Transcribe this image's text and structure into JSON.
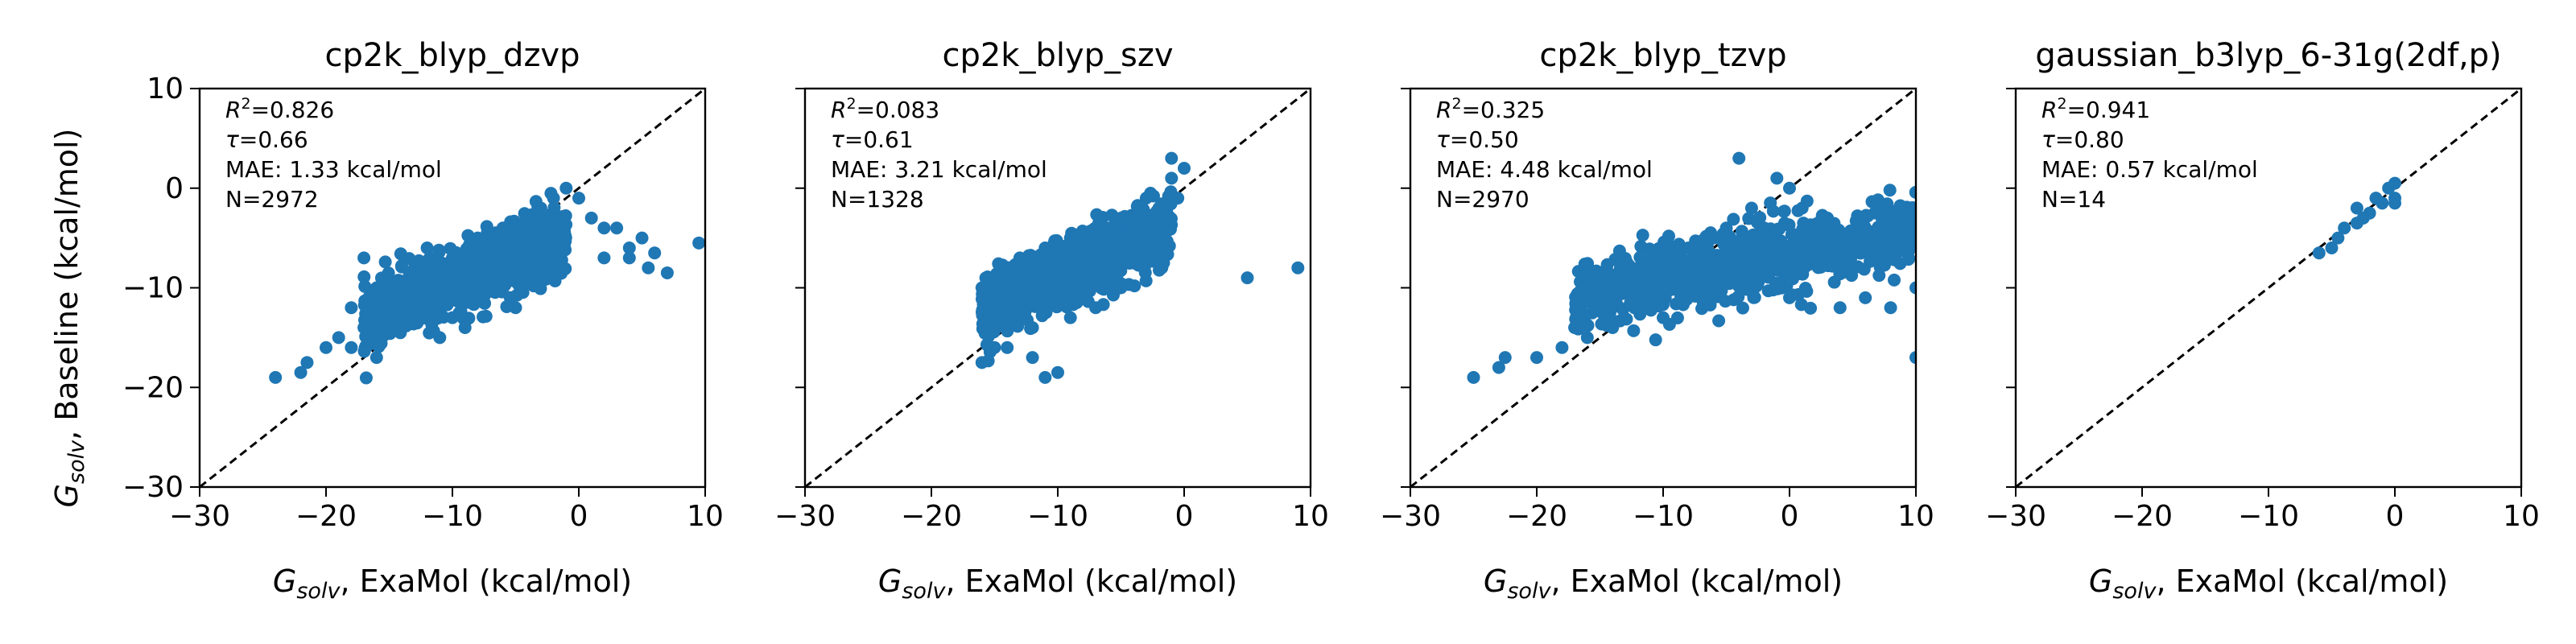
{
  "figure": {
    "ylabel_var": "G",
    "ylabel_sub": "solv",
    "ylabel_rest": ", Baseline (kcal/mol)",
    "xlabel_var": "G",
    "xlabel_sub": "solv",
    "xlabel_rest": ", ExaMol (kcal/mol)",
    "marker_color": "#1f77b4"
  },
  "chart_data": [
    {
      "type": "scatter",
      "title": "cp2k_blyp_dzvp",
      "xlim": [
        -30,
        10
      ],
      "ylim": [
        -30,
        10
      ],
      "xticks": [
        "−30",
        "−20",
        "−10",
        "0",
        "10"
      ],
      "yticks": [
        "−30",
        "−20",
        "−10",
        "0",
        "10"
      ],
      "xtick_values": [
        -30,
        -20,
        -10,
        0,
        10
      ],
      "ytick_values": [
        -30,
        -20,
        -10,
        0,
        10
      ],
      "stats": {
        "r2": "=0.826",
        "tau": "=0.66",
        "mae": "MAE: 1.33 kcal/mol",
        "n": "N=2972"
      },
      "identity_line": true,
      "cluster": {
        "x_range": [
          -17,
          -1
        ],
        "y_center": -9,
        "spread": 3.0
      },
      "points": [
        [
          -24,
          -19
        ],
        [
          -22,
          -18.5
        ],
        [
          -21.5,
          -17.5
        ],
        [
          -19,
          -15
        ],
        [
          -18,
          -16
        ],
        [
          -17,
          -14
        ],
        [
          -16,
          -17
        ],
        [
          -16,
          -13.5
        ],
        [
          -15,
          -12
        ],
        [
          -14,
          -13
        ],
        [
          -17,
          -7
        ],
        [
          -16,
          -10
        ],
        [
          -14,
          -11
        ],
        [
          -13,
          -8
        ],
        [
          -12,
          -10
        ],
        [
          -12,
          -6
        ],
        [
          -11,
          -9
        ],
        [
          -10,
          -7
        ],
        [
          -9,
          -8
        ],
        [
          -8,
          -5
        ],
        [
          -7,
          -6
        ],
        [
          -6,
          -4
        ],
        [
          -5,
          -7
        ],
        [
          -4,
          -3
        ],
        [
          -3,
          -2
        ],
        [
          -2,
          -1
        ],
        [
          -1,
          0
        ],
        [
          0,
          -1
        ],
        [
          1,
          -3
        ],
        [
          2,
          -4
        ],
        [
          2,
          -7
        ],
        [
          3,
          -4
        ],
        [
          4,
          -6
        ],
        [
          4,
          -7
        ],
        [
          5,
          -5
        ],
        [
          5.5,
          -8
        ],
        [
          6,
          -6.5
        ],
        [
          7,
          -8.5
        ],
        [
          9.5,
          -5.5
        ],
        [
          -13,
          -12
        ],
        [
          -11,
          -15
        ],
        [
          -10,
          -13
        ],
        [
          -8,
          -11
        ],
        [
          -6,
          -10
        ],
        [
          -4,
          -8
        ],
        [
          -3,
          -9
        ],
        [
          -5,
          -12
        ],
        [
          -9,
          -14
        ],
        [
          -18,
          -12
        ],
        [
          -20,
          -16
        ]
      ]
    },
    {
      "type": "scatter",
      "title": "cp2k_blyp_szv",
      "xlim": [
        -30,
        10
      ],
      "ylim": [
        -30,
        10
      ],
      "xticks": [
        "−30",
        "−20",
        "−10",
        "0",
        "10"
      ],
      "yticks": [],
      "xtick_values": [
        -30,
        -20,
        -10,
        0,
        10
      ],
      "ytick_values": [
        -30,
        -20,
        -10,
        0,
        10
      ],
      "stats": {
        "r2": "=0.083",
        "tau": "=0.61",
        "mae": "MAE: 3.21 kcal/mol",
        "n": "N=1328"
      },
      "identity_line": true,
      "cluster": {
        "x_range": [
          -16,
          -1
        ],
        "y_center": -8,
        "spread": 3.0
      },
      "points": [
        [
          -16,
          -17.5
        ],
        [
          -15,
          -16
        ],
        [
          -14,
          -16
        ],
        [
          -12,
          -17
        ],
        [
          -11,
          -19
        ],
        [
          -10,
          -18.5
        ],
        [
          -15,
          -12
        ],
        [
          -16,
          -10
        ],
        [
          -14,
          -8
        ],
        [
          -13,
          -7
        ],
        [
          -12,
          -11
        ],
        [
          -11,
          -6
        ],
        [
          -10,
          -9
        ],
        [
          -9,
          -5
        ],
        [
          -8,
          -8
        ],
        [
          -7,
          -4
        ],
        [
          -6,
          -6
        ],
        [
          -5,
          -3
        ],
        [
          -4,
          -5
        ],
        [
          -3,
          -1
        ],
        [
          -2,
          -2
        ],
        [
          -1,
          1
        ],
        [
          -1,
          3
        ],
        [
          0,
          2
        ],
        [
          -0.5,
          -1
        ],
        [
          5,
          -9
        ],
        [
          9,
          -8
        ],
        [
          -9,
          -13
        ],
        [
          -7,
          -12
        ],
        [
          -5,
          -10
        ],
        [
          -3,
          -6
        ],
        [
          -12,
          -14
        ]
      ]
    },
    {
      "type": "scatter",
      "title": "cp2k_blyp_tzvp",
      "xlim": [
        -30,
        10
      ],
      "ylim": [
        -30,
        10
      ],
      "xticks": [
        "−30",
        "−20",
        "−10",
        "0",
        "10"
      ],
      "yticks": [],
      "xtick_values": [
        -30,
        -20,
        -10,
        0,
        10
      ],
      "ytick_values": [
        -30,
        -20,
        -10,
        0,
        10
      ],
      "stats": {
        "r2": "=0.325",
        "tau": "=0.50",
        "mae": "MAE: 4.48 kcal/mol",
        "n": "N=2970"
      },
      "identity_line": true,
      "cluster": {
        "x_range": [
          -17,
          10
        ],
        "y_center": -7.5,
        "spread": 3.2
      },
      "points": [
        [
          -25,
          -19
        ],
        [
          -23,
          -18
        ],
        [
          -22.5,
          -17
        ],
        [
          -20,
          -17
        ],
        [
          -18,
          -16
        ],
        [
          -17,
          -14
        ],
        [
          -16,
          -15
        ],
        [
          -15,
          -12
        ],
        [
          -14,
          -14
        ],
        [
          -13,
          -10
        ],
        [
          -12,
          -12
        ],
        [
          -11,
          -9
        ],
        [
          -10,
          -8
        ],
        [
          -9,
          -10
        ],
        [
          -8,
          -6
        ],
        [
          -7,
          -7
        ],
        [
          -6,
          -5
        ],
        [
          -5,
          -4
        ],
        [
          -4,
          -6
        ],
        [
          -3,
          -2
        ],
        [
          -2,
          -4
        ],
        [
          -1,
          1
        ],
        [
          0,
          0
        ],
        [
          1,
          -2
        ],
        [
          2,
          -5
        ],
        [
          3,
          -3
        ],
        [
          4,
          -6
        ],
        [
          5,
          -8
        ],
        [
          6,
          -4
        ],
        [
          7,
          -5
        ],
        [
          8,
          -7
        ],
        [
          9,
          -3
        ],
        [
          10,
          -10
        ],
        [
          10,
          -17
        ],
        [
          -4,
          3
        ],
        [
          0,
          -11
        ],
        [
          4,
          -12
        ],
        [
          6,
          -11
        ],
        [
          8,
          -12
        ],
        [
          -10,
          -13
        ],
        [
          -7,
          -11
        ],
        [
          -5,
          -9
        ],
        [
          -2,
          -8
        ]
      ]
    },
    {
      "type": "scatter",
      "title": "gaussian_b3lyp_6-31g(2df,p)",
      "xlim": [
        -30,
        10
      ],
      "ylim": [
        -30,
        10
      ],
      "xticks": [
        "−30",
        "−20",
        "−10",
        "0",
        "10"
      ],
      "yticks": [],
      "xtick_values": [
        -30,
        -20,
        -10,
        0,
        10
      ],
      "ytick_values": [
        -30,
        -20,
        -10,
        0,
        10
      ],
      "stats": {
        "r2": "=0.941",
        "tau": "=0.80",
        "mae": "MAE: 0.57 kcal/mol",
        "n": "N=14"
      },
      "identity_line": true,
      "cluster": null,
      "points": [
        [
          -6,
          -6.5
        ],
        [
          -5,
          -6
        ],
        [
          -4.5,
          -5
        ],
        [
          -4,
          -4
        ],
        [
          -3,
          -3.5
        ],
        [
          -3,
          -2
        ],
        [
          -2,
          -2.5
        ],
        [
          -1.5,
          -1
        ],
        [
          -1,
          -1.5
        ],
        [
          -0.5,
          0
        ],
        [
          0,
          0.5
        ],
        [
          0,
          -1
        ],
        [
          0,
          -1.5
        ],
        [
          -2.5,
          -3
        ]
      ]
    }
  ]
}
